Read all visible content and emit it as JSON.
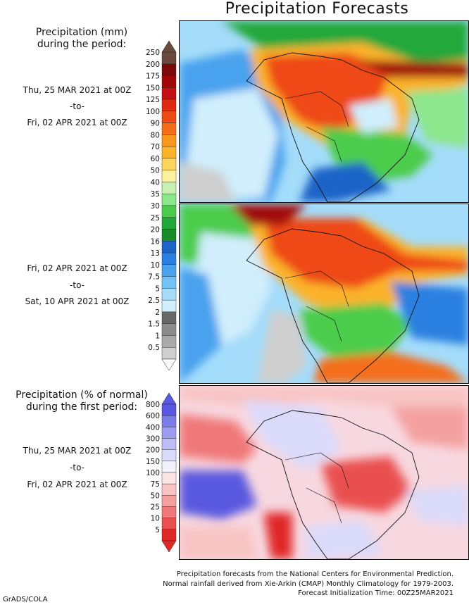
{
  "title": "Precipitation Forecasts",
  "legend_top": {
    "heading_line1": "Precipitation (mm)",
    "heading_line2": "during the period:",
    "levels": [
      "250",
      "200",
      "175",
      "150",
      "125",
      "100",
      "90",
      "80",
      "70",
      "60",
      "50",
      "40",
      "35",
      "30",
      "25",
      "20",
      "16",
      "13",
      "10",
      "7.5",
      "5",
      "2.5",
      "2",
      "1.5",
      "1",
      "0.5"
    ],
    "colors": [
      "#6a4a3c",
      "#7a0a0a",
      "#a00808",
      "#c41010",
      "#de2a10",
      "#ee4a14",
      "#f46e1a",
      "#f8961e",
      "#fbb32a",
      "#fdd45a",
      "#fdf09a",
      "#c8f0b0",
      "#8ce68c",
      "#4ccc4c",
      "#22a83a",
      "#1a8a2a",
      "#1c64c8",
      "#2a80e0",
      "#4aa2ee",
      "#72c2f6",
      "#a4dcfa",
      "#d0eefc",
      "#686868",
      "#8c8c8c",
      "#aaaaaa",
      "#cecece"
    ]
  },
  "period1": {
    "start": "Thu, 25 MAR 2021 at 00Z",
    "sep": "-to-",
    "end": "Fri, 02 APR 2021 at 00Z"
  },
  "period2": {
    "start": "Fri, 02 APR 2021 at 00Z",
    "sep": "-to-",
    "end": "Sat, 10 APR 2021 at 00Z"
  },
  "legend_bottom": {
    "heading_line1": "Precipitation (% of normal)",
    "heading_line2": "during the first period:",
    "levels": [
      "800",
      "600",
      "400",
      "300",
      "200",
      "150",
      "100",
      "75",
      "50",
      "25",
      "10",
      "5"
    ],
    "colors": [
      "#5858e0",
      "#7a7ae8",
      "#9c9cf0",
      "#bcbcf6",
      "#dadafa",
      "#f2f2fc",
      "#fce4e4",
      "#f8c4c4",
      "#f4a0a0",
      "#f07878",
      "#ea5050",
      "#e02828"
    ]
  },
  "period3": {
    "start": "Thu, 25 MAR 2021 at 00Z",
    "sep": "-to-",
    "end": "Fri, 02 APR 2021 at 00Z"
  },
  "footer": {
    "line1": "Precipitation forecasts from the National Centers for Environmental Prediction.",
    "line2": "Normal rainfall derived from Xie-Arkin (CMAP) Monthly Climatology for 1979-2003.",
    "line3": "Forecast Initialization Time: 00Z25MAR2021"
  },
  "credit": "GrADS/COLA"
}
